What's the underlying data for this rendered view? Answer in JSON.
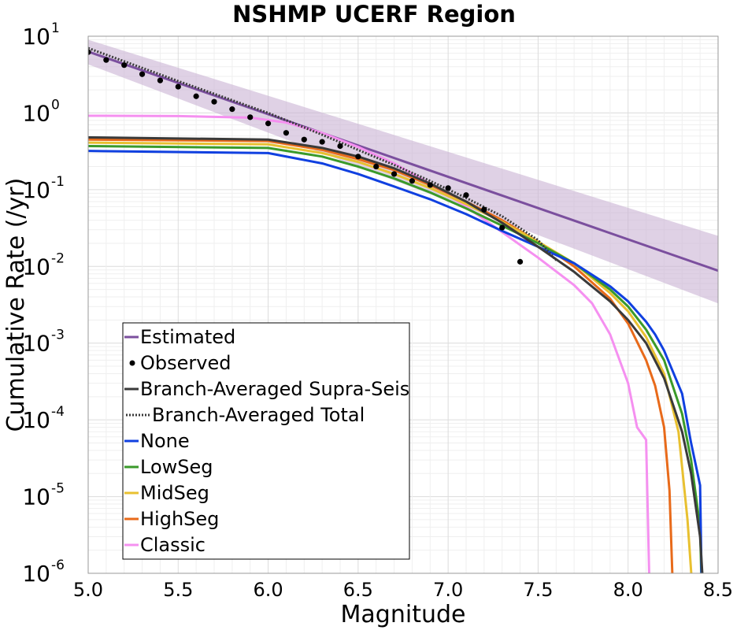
{
  "chart_data": {
    "type": "line",
    "title": "NSHMP UCERF Region",
    "xlabel": "Magnitude",
    "ylabel": "Cumulative Rate (/yr)",
    "xlim": [
      5.0,
      8.5
    ],
    "ylim": [
      1e-06,
      10
    ],
    "y_scale": "log",
    "grid": true,
    "legend_position": "lower-left",
    "x_ticks": [
      "5.0",
      "5.5",
      "6.0",
      "6.5",
      "7.0",
      "7.5",
      "8.0",
      "8.5"
    ],
    "y_ticks": [
      {
        "base": "10",
        "exp": "1"
      },
      {
        "base": "10",
        "exp": "0"
      },
      {
        "base": "10",
        "exp": "-1"
      },
      {
        "base": "10",
        "exp": "-2"
      },
      {
        "base": "10",
        "exp": "-3"
      },
      {
        "base": "10",
        "exp": "-4"
      },
      {
        "base": "10",
        "exp": "-5"
      },
      {
        "base": "10",
        "exp": "-6"
      }
    ],
    "band": {
      "series": "Estimated",
      "color": "#c9b3d3",
      "x": [
        5.0,
        8.5
      ],
      "lower": [
        4.3,
        0.0033
      ],
      "upper": [
        9.0,
        0.025
      ]
    },
    "series": [
      {
        "name": "Estimated",
        "style": "solid",
        "color": "#7b4f9e",
        "x": [
          5.0,
          8.5
        ],
        "y": [
          6.3,
          0.0088
        ]
      },
      {
        "name": "Observed",
        "style": "points",
        "color": "#000000",
        "x": [
          5.0,
          5.1,
          5.2,
          5.3,
          5.4,
          5.5,
          5.6,
          5.7,
          5.8,
          5.9,
          6.0,
          6.1,
          6.2,
          6.3,
          6.4,
          6.5,
          6.6,
          6.7,
          6.8,
          6.9,
          7.0,
          7.1,
          7.2,
          7.3,
          7.4
        ],
        "y": [
          6.2,
          4.9,
          4.2,
          3.2,
          2.65,
          2.2,
          1.65,
          1.4,
          1.12,
          0.88,
          0.73,
          0.55,
          0.45,
          0.42,
          0.37,
          0.27,
          0.2,
          0.16,
          0.13,
          0.115,
          0.105,
          0.085,
          0.055,
          0.032,
          0.0115
        ]
      },
      {
        "name": "Branch-Averaged Supra-Seis",
        "style": "solid",
        "color": "#3a3a3a",
        "x": [
          5.0,
          6.0,
          6.3,
          6.5,
          6.7,
          6.9,
          7.1,
          7.3,
          7.5,
          7.7,
          7.9,
          8.0,
          8.1,
          8.2,
          8.3,
          8.35,
          8.4,
          8.42
        ],
        "y": [
          0.48,
          0.45,
          0.35,
          0.27,
          0.19,
          0.12,
          0.07,
          0.037,
          0.018,
          0.0085,
          0.0035,
          0.002,
          0.001,
          0.00035,
          7e-05,
          2e-05,
          3e-06,
          5e-07
        ]
      },
      {
        "name": "Branch-Averaged Total",
        "style": "dotted",
        "color": "#3a3a3a",
        "x": [
          5.0,
          5.5,
          6.0,
          6.3,
          6.5,
          6.7,
          6.9,
          7.1,
          7.3,
          7.5,
          7.6
        ],
        "y": [
          7.0,
          2.6,
          1.0,
          0.52,
          0.33,
          0.21,
          0.13,
          0.078,
          0.045,
          0.022,
          0.012
        ]
      },
      {
        "name": "None",
        "style": "solid",
        "color": "#1040e0",
        "x": [
          5.0,
          6.0,
          6.3,
          6.5,
          6.7,
          6.9,
          7.1,
          7.3,
          7.5,
          7.7,
          7.9,
          8.0,
          8.1,
          8.15,
          8.2,
          8.3,
          8.35,
          8.4,
          8.41
        ],
        "y": [
          0.32,
          0.3,
          0.22,
          0.16,
          0.11,
          0.075,
          0.048,
          0.029,
          0.018,
          0.011,
          0.0055,
          0.0035,
          0.0019,
          0.0013,
          0.0008,
          0.00022,
          5e-05,
          1.4e-05,
          5e-07
        ]
      },
      {
        "name": "LowSeg",
        "style": "solid",
        "color": "#3a9a2a",
        "x": [
          5.0,
          6.0,
          6.3,
          6.5,
          6.7,
          6.9,
          7.1,
          7.3,
          7.5,
          7.7,
          7.9,
          8.0,
          8.1,
          8.2,
          8.3,
          8.35,
          8.4,
          8.41
        ],
        "y": [
          0.37,
          0.35,
          0.27,
          0.2,
          0.14,
          0.092,
          0.057,
          0.034,
          0.02,
          0.011,
          0.005,
          0.003,
          0.0015,
          0.0006,
          0.00012,
          3e-05,
          4e-06,
          5e-07
        ]
      },
      {
        "name": "MidSeg",
        "style": "solid",
        "color": "#e8c030",
        "x": [
          5.0,
          6.0,
          6.3,
          6.5,
          6.7,
          6.9,
          7.1,
          7.3,
          7.5,
          7.7,
          7.9,
          8.0,
          8.1,
          8.2,
          8.28,
          8.33,
          8.36
        ],
        "y": [
          0.41,
          0.39,
          0.3,
          0.23,
          0.16,
          0.105,
          0.065,
          0.038,
          0.021,
          0.011,
          0.0045,
          0.0026,
          0.0012,
          0.0004,
          7e-05,
          5e-06,
          5e-07
        ]
      },
      {
        "name": "HighSeg",
        "style": "solid",
        "color": "#e86a1a",
        "x": [
          5.0,
          6.0,
          6.3,
          6.5,
          6.7,
          6.9,
          7.1,
          7.3,
          7.5,
          7.7,
          7.9,
          8.0,
          8.1,
          8.15,
          8.2,
          8.23,
          8.25
        ],
        "y": [
          0.45,
          0.43,
          0.33,
          0.25,
          0.18,
          0.115,
          0.07,
          0.04,
          0.021,
          0.01,
          0.0038,
          0.0018,
          0.0006,
          0.00028,
          8e-05,
          1.2e-05,
          5e-07
        ]
      },
      {
        "name": "Classic",
        "style": "solid",
        "color": "#f590f0",
        "x": [
          5.0,
          5.5,
          5.9,
          6.1,
          6.3,
          6.5,
          6.7,
          6.9,
          7.1,
          7.3,
          7.5,
          7.7,
          7.8,
          7.9,
          8.0,
          8.05,
          8.1,
          8.12
        ],
        "y": [
          0.92,
          0.91,
          0.87,
          0.75,
          0.55,
          0.36,
          0.22,
          0.12,
          0.06,
          0.028,
          0.013,
          0.0057,
          0.0033,
          0.0013,
          0.0003,
          8e-05,
          5.5e-05,
          5e-07
        ]
      }
    ],
    "legend": [
      {
        "label": "Estimated",
        "marker": "line",
        "color": "#7b4f9e"
      },
      {
        "label": "Observed",
        "marker": "dot",
        "color": "#000000"
      },
      {
        "label": "Branch-Averaged Supra-Seis",
        "marker": "line",
        "color": "#3a3a3a"
      },
      {
        "label": "Branch-Averaged Total",
        "marker": "dotted",
        "color": "#3a3a3a"
      },
      {
        "label": "None",
        "marker": "line",
        "color": "#1040e0"
      },
      {
        "label": "LowSeg",
        "marker": "line",
        "color": "#3a9a2a"
      },
      {
        "label": "MidSeg",
        "marker": "line",
        "color": "#e8c030"
      },
      {
        "label": "HighSeg",
        "marker": "line",
        "color": "#e86a1a"
      },
      {
        "label": "Classic",
        "marker": "line",
        "color": "#f590f0"
      }
    ]
  }
}
